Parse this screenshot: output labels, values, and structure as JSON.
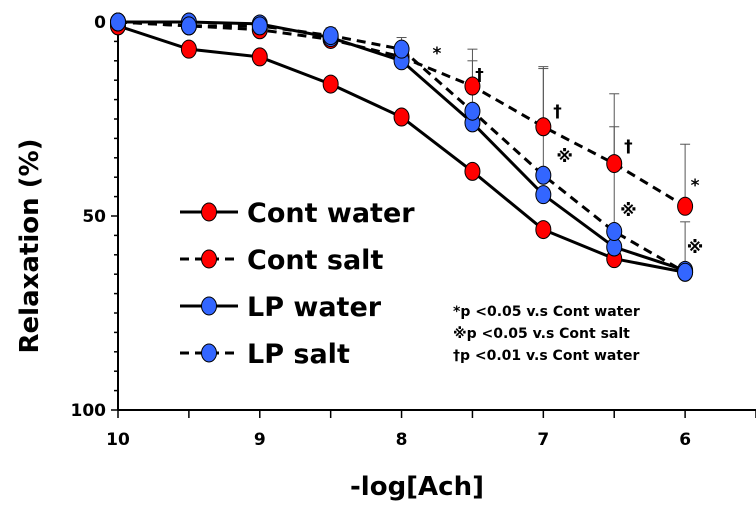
{
  "chart_data": {
    "type": "line",
    "xlabel": "-log[Ach]",
    "ylabel": "Relaxation (%)",
    "x_ticks": [
      "10",
      "9",
      "8",
      "7",
      "6"
    ],
    "y_ticks": [
      "0",
      "50",
      "100"
    ],
    "xlim": [
      10,
      5.5
    ],
    "ylim": [
      0,
      100
    ],
    "y_inverted": true,
    "x": [
      10,
      9.5,
      9,
      8.5,
      8,
      7.5,
      7,
      6.5,
      6
    ],
    "series": [
      {
        "name": "Cont water",
        "line": "solid",
        "color": "#ff0000",
        "values": [
          1,
          7,
          9,
          16,
          24.5,
          38.5,
          53.5,
          61,
          64.5
        ],
        "error": [
          0,
          0,
          0,
          0,
          0,
          0,
          0,
          0,
          0
        ]
      },
      {
        "name": "Cont salt",
        "line": "dashed",
        "color": "#ff0000",
        "values": [
          0,
          1,
          2,
          4.5,
          9,
          16.5,
          27,
          36.5,
          47.5
        ],
        "error": [
          0,
          0,
          0,
          0,
          0,
          9.5,
          15,
          18,
          16
        ]
      },
      {
        "name": "LP water",
        "line": "solid",
        "color": "#3366ff",
        "values": [
          0,
          0,
          0.5,
          4,
          10,
          26,
          44.5,
          58,
          64
        ],
        "error": [
          0,
          0,
          0,
          0,
          0,
          0,
          0,
          0,
          0
        ]
      },
      {
        "name": "LP salt",
        "line": "dashed",
        "color": "#3366ff",
        "values": [
          0,
          1,
          1,
          3.5,
          7,
          23,
          39.5,
          54,
          64.5
        ],
        "error": [
          0,
          0,
          0,
          2,
          3,
          13,
          28,
          27,
          13
        ]
      }
    ],
    "significance": [
      {
        "x": 7.75,
        "y": 8,
        "mark": "*"
      },
      {
        "x": 7.45,
        "y": 13.5,
        "mark": "†"
      },
      {
        "x": 6.9,
        "y": 23,
        "mark": "†"
      },
      {
        "x": 6.85,
        "y": 34.5,
        "mark": "※"
      },
      {
        "x": 6.4,
        "y": 32,
        "mark": "†"
      },
      {
        "x": 6.4,
        "y": 48.5,
        "mark": "※"
      },
      {
        "x": 5.93,
        "y": 42,
        "mark": "*"
      },
      {
        "x": 5.93,
        "y": 58,
        "mark": "※"
      }
    ],
    "notes": [
      "*p <0.05 v.s Cont water",
      "※p <0.05 v.s Cont salt",
      "†p <0.01 v.s Cont water"
    ],
    "legend_position": "center-left",
    "grid": false
  }
}
